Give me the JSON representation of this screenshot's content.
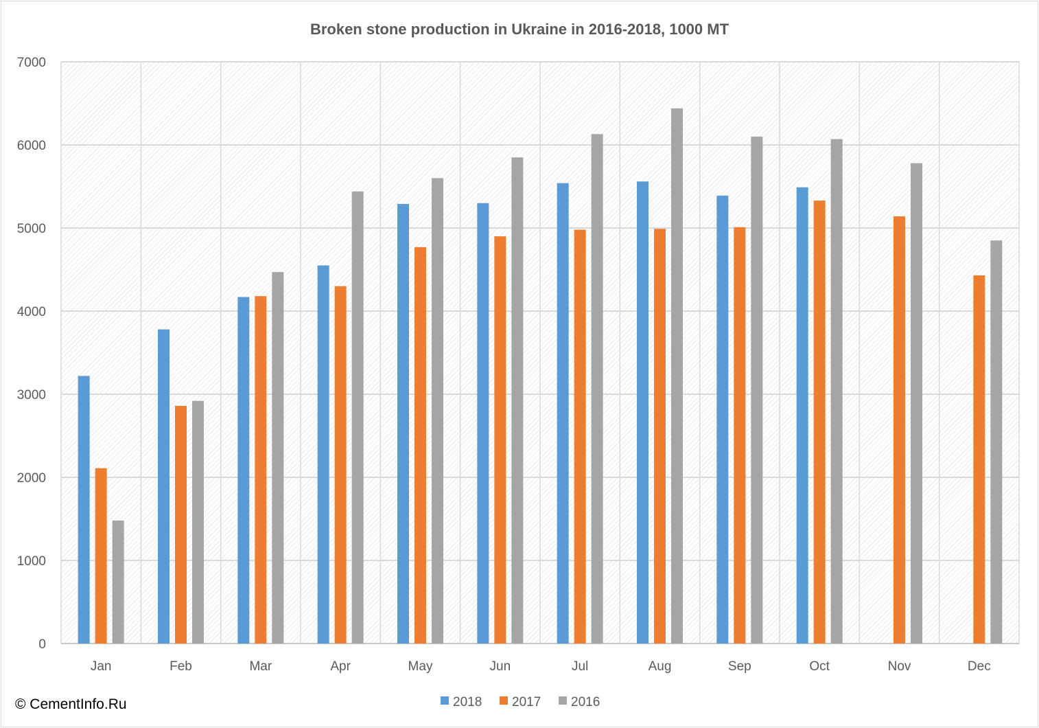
{
  "chart_data": {
    "type": "bar",
    "title": "Broken stone production in Ukraine in 2016-2018, 1000 MT",
    "xlabel": "",
    "ylabel": "",
    "categories": [
      "Jan",
      "Feb",
      "Mar",
      "Apr",
      "May",
      "Jun",
      "Jul",
      "Aug",
      "Sep",
      "Oct",
      "Nov",
      "Dec"
    ],
    "series": [
      {
        "name": "2018",
        "color": "#5b9bd5",
        "values": [
          3220,
          3780,
          4170,
          4550,
          5290,
          5300,
          5540,
          5560,
          5390,
          5490,
          null,
          null
        ]
      },
      {
        "name": "2017",
        "color": "#ed7d31",
        "values": [
          2110,
          2860,
          4180,
          4300,
          4770,
          4900,
          4980,
          4990,
          5010,
          5330,
          5140,
          4430
        ]
      },
      {
        "name": "2016",
        "color": "#a5a5a5",
        "values": [
          1480,
          2920,
          4470,
          5440,
          5600,
          5850,
          6130,
          6440,
          6100,
          6070,
          5780,
          4850
        ]
      }
    ],
    "ylim": [
      0,
      7000
    ],
    "yticks": [
      "0",
      "1000",
      "2000",
      "3000",
      "4000",
      "5000",
      "6000",
      "7000"
    ],
    "grid": true,
    "legend_position": "bottom"
  },
  "footer": {
    "copyright": "© CementInfo.Ru"
  }
}
